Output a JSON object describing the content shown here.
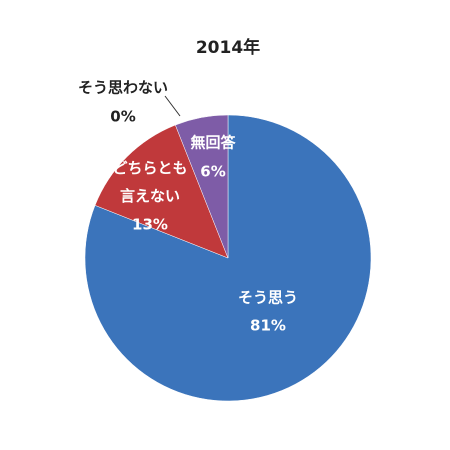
{
  "chart_data": {
    "type": "pie",
    "title": "2014年",
    "categories": [
      "そう思う",
      "どちらとも\n言えない",
      "そう思わない",
      "無回答"
    ],
    "values": [
      81,
      13,
      0,
      6
    ],
    "value_labels": [
      "81%",
      "13%",
      "0%",
      "6%"
    ],
    "colors": [
      "#3b74bb",
      "#c0393b",
      "#9bbb59",
      "#7e5ca7"
    ]
  }
}
